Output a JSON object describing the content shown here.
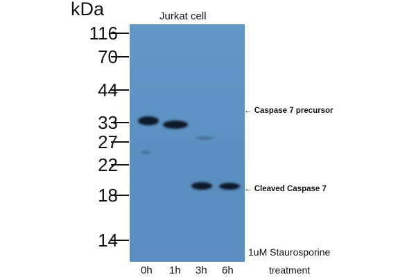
{
  "unit_label": "kDa",
  "sample_label": "Jurkat cell",
  "markers": [
    "116",
    "70",
    "44",
    "33",
    "27",
    "22",
    "18",
    "14"
  ],
  "lanes": [
    "0h",
    "1h",
    "3h",
    "6h"
  ],
  "annotations": {
    "precursor": "← Caspase 7 precursor",
    "cleaved": "← Cleaved Caspase 7"
  },
  "treatment": {
    "line1": "1uM Staurosporine",
    "line2": "treatment"
  },
  "colors": {
    "membrane": "#5b8fc0",
    "band": "#0d1a2a"
  }
}
